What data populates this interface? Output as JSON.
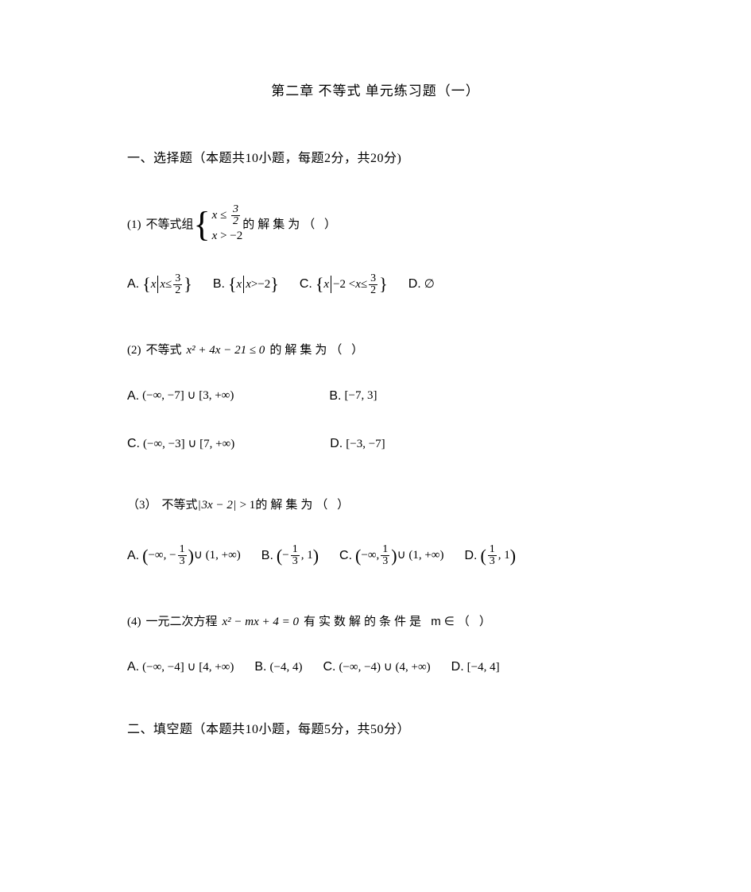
{
  "colors": {
    "bg": "#ffffff",
    "text": "#000000"
  },
  "title": "第二章 不等式 单元练习题（一）",
  "section1": "一、选择题（本题共10小题，每题2分，共20分)",
  "q1": {
    "num": "(1)",
    "pre": "不等式组",
    "sys_row1_a": "x",
    "sys_row1_op": "≤",
    "sys_row1_frac_num": "3",
    "sys_row1_frac_den": "2",
    "sys_row2_a": "x",
    "sys_row2_op": ">",
    "sys_row2_b": "−2",
    "post": "的解集为（        ）",
    "A": {
      "label": "A.",
      "set_pre": "x",
      "cond_a": "x",
      "cond_op": "≤",
      "frac_num": "3",
      "frac_den": "2"
    },
    "B": {
      "label": "B.",
      "set_pre": "x",
      "cond_a": "x",
      "cond_op": ">",
      "cond_b": "−2"
    },
    "C": {
      "label": "C.",
      "set_pre": "x",
      "cond_lo": "−2 <",
      "cond_mid": "x",
      "cond_hi_op": "≤",
      "frac_num": "3",
      "frac_den": "2"
    },
    "D": {
      "label": "D.",
      "val": "∅"
    }
  },
  "q2": {
    "num": "(2)",
    "pre": "不等式",
    "expr": "x² + 4x − 21 ≤ 0",
    "post": "的解集为（        ）",
    "A": {
      "label": "A.",
      "val": "(−∞, −7] ∪ [3, +∞)"
    },
    "B": {
      "label": "B.",
      "val": "[−7, 3]"
    },
    "C": {
      "label": "C.",
      "val": "(−∞, −3] ∪ [7, +∞)"
    },
    "D": {
      "label": "D.",
      "val": "[−3, −7]"
    }
  },
  "q3": {
    "num": "（3）",
    "pre": "不等式",
    "abs_inner": "3x − 2",
    "abs_gt": "> 1",
    "post": "的解集为（        ）",
    "A": {
      "label": "A.",
      "left": "−∞, −",
      "frac_num": "1",
      "frac_den": "3",
      "right": "∪ (1, +∞)"
    },
    "B": {
      "label": "B.",
      "left": "−",
      "frac_num": "1",
      "frac_den": "3",
      "right": ", 1"
    },
    "C": {
      "label": "C.",
      "left": "−∞, ",
      "frac_num": "1",
      "frac_den": "3",
      "right": "∪ (1, +∞)"
    },
    "D": {
      "label": "D.",
      "frac_num": "1",
      "frac_den": "3",
      "right": ", 1"
    }
  },
  "q4": {
    "num": "(4)",
    "pre": "一元二次方程",
    "expr": "x² − mx + 4 = 0",
    "post": "有实数解的条件是 m∈（        ）",
    "A": {
      "label": "A.",
      "val": "(−∞, −4] ∪ [4, +∞)"
    },
    "B": {
      "label": "B.",
      "val": "(−4, 4)"
    },
    "C": {
      "label": "C.",
      "val": "(−∞, −4) ∪ (4, +∞)"
    },
    "D": {
      "label": "D.",
      "val": "[−4, 4]"
    }
  },
  "section2": "二、填空题（本题共10小题，每题5分，共50分）"
}
